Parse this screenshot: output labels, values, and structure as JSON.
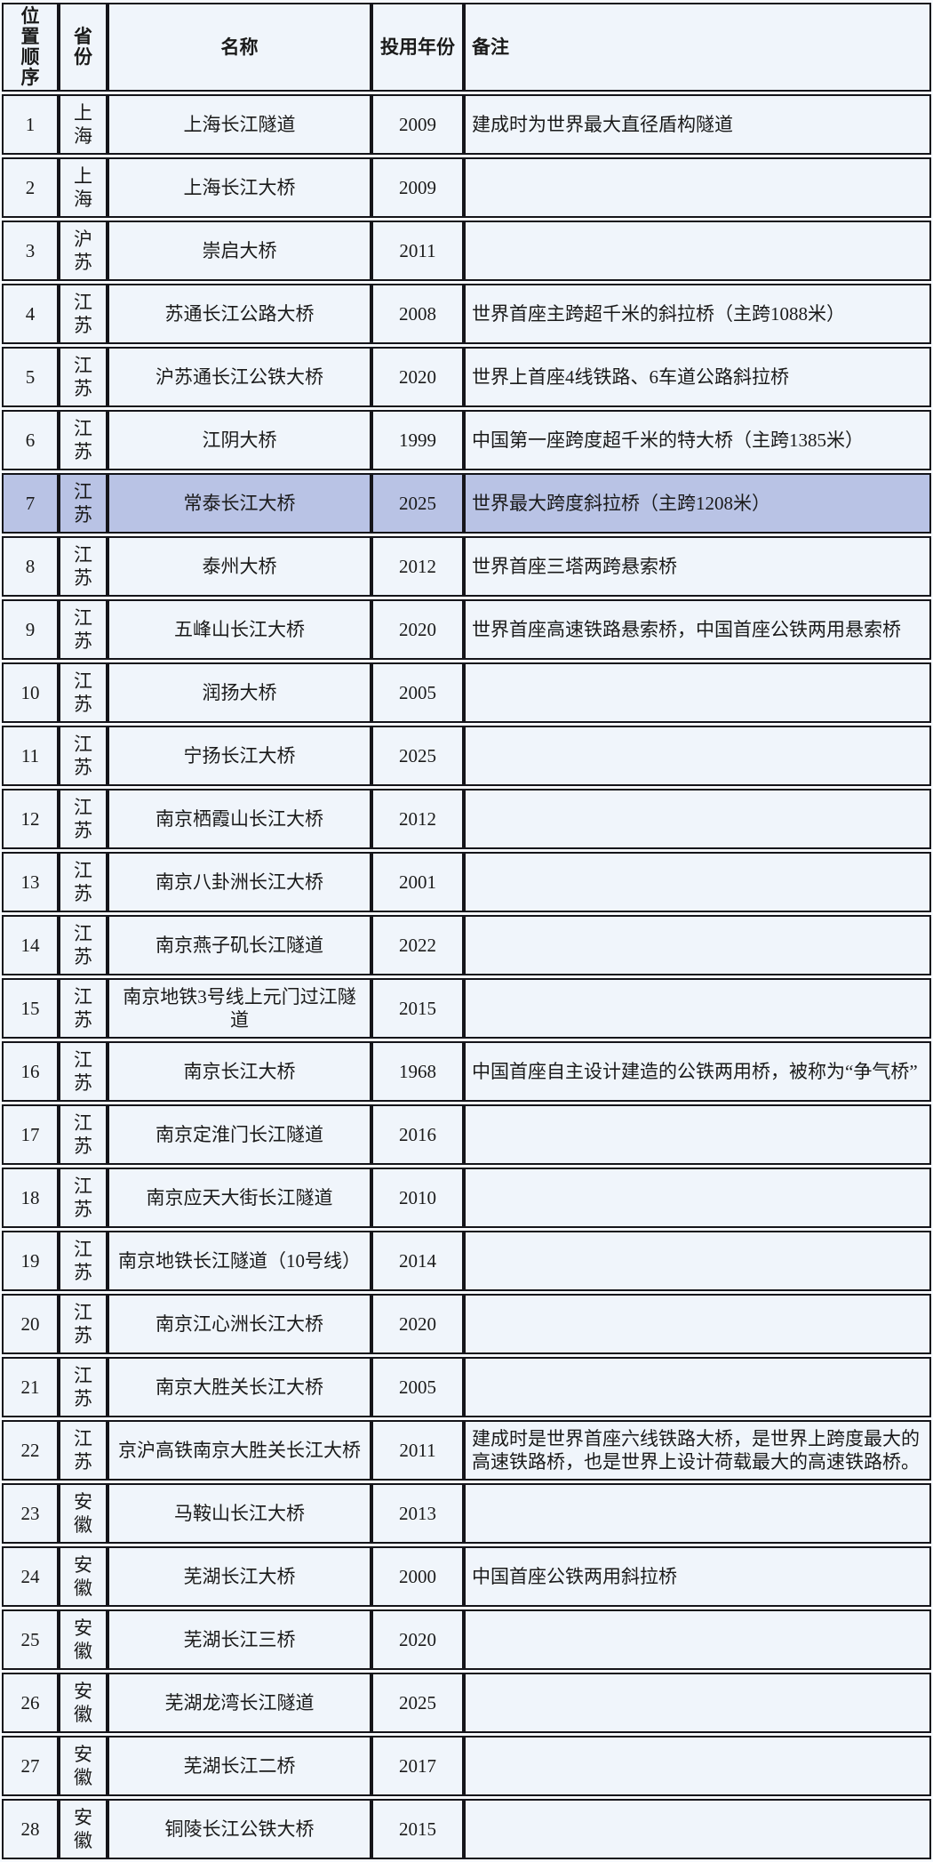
{
  "table": {
    "columns": [
      {
        "key": "order",
        "label": "位置顺序"
      },
      {
        "key": "province",
        "label": "省份"
      },
      {
        "key": "name",
        "label": "名称"
      },
      {
        "key": "year",
        "label": "投用年份"
      },
      {
        "key": "remark",
        "label": "备注"
      }
    ],
    "highlighted_order": "7",
    "colors": {
      "page_bg": "#f6f9fd",
      "cell_bg": "#f0f5fb",
      "highlight_bg": "#b9c3e5",
      "border": "#15151a",
      "text": "#1a1a1a"
    },
    "rows": [
      {
        "order": "1",
        "province": "上海",
        "name": "上海长江隧道",
        "year": "2009",
        "remark": "建成时为世界最大直径盾构隧道"
      },
      {
        "order": "2",
        "province": "上海",
        "name": "上海长江大桥",
        "year": "2009",
        "remark": ""
      },
      {
        "order": "3",
        "province": "沪苏",
        "name": "崇启大桥",
        "year": "2011",
        "remark": ""
      },
      {
        "order": "4",
        "province": "江苏",
        "name": "苏通长江公路大桥",
        "year": "2008",
        "remark": "世界首座主跨超千米的斜拉桥（主跨1088米）"
      },
      {
        "order": "5",
        "province": "江苏",
        "name": "沪苏通长江公铁大桥",
        "year": "2020",
        "remark": "世界上首座4线铁路、6车道公路斜拉桥"
      },
      {
        "order": "6",
        "province": "江苏",
        "name": "江阴大桥",
        "year": "1999",
        "remark": "中国第一座跨度超千米的特大桥（主跨1385米）"
      },
      {
        "order": "7",
        "province": "江苏",
        "name": "常泰长江大桥",
        "year": "2025",
        "remark": "世界最大跨度斜拉桥（主跨1208米）"
      },
      {
        "order": "8",
        "province": "江苏",
        "name": "泰州大桥",
        "year": "2012",
        "remark": "世界首座三塔两跨悬索桥"
      },
      {
        "order": "9",
        "province": "江苏",
        "name": "五峰山长江大桥",
        "year": "2020",
        "remark": "世界首座高速铁路悬索桥，中国首座公铁两用悬索桥"
      },
      {
        "order": "10",
        "province": "江苏",
        "name": "润扬大桥",
        "year": "2005",
        "remark": ""
      },
      {
        "order": "11",
        "province": "江苏",
        "name": "宁扬长江大桥",
        "year": "2025",
        "remark": ""
      },
      {
        "order": "12",
        "province": "江苏",
        "name": "南京栖霞山长江大桥",
        "year": "2012",
        "remark": ""
      },
      {
        "order": "13",
        "province": "江苏",
        "name": "南京八卦洲长江大桥",
        "year": "2001",
        "remark": ""
      },
      {
        "order": "14",
        "province": "江苏",
        "name": "南京燕子矶长江隧道",
        "year": "2022",
        "remark": ""
      },
      {
        "order": "15",
        "province": "江苏",
        "name": "南京地铁3号线上元门过江隧道",
        "year": "2015",
        "remark": ""
      },
      {
        "order": "16",
        "province": "江苏",
        "name": "南京长江大桥",
        "year": "1968",
        "remark": "中国首座自主设计建造的公铁两用桥，被称为“争气桥”"
      },
      {
        "order": "17",
        "province": "江苏",
        "name": "南京定淮门长江隧道",
        "year": "2016",
        "remark": ""
      },
      {
        "order": "18",
        "province": "江苏",
        "name": "南京应天大街长江隧道",
        "year": "2010",
        "remark": ""
      },
      {
        "order": "19",
        "province": "江苏",
        "name": "南京地铁长江隧道（10号线）",
        "year": "2014",
        "remark": ""
      },
      {
        "order": "20",
        "province": "江苏",
        "name": "南京江心洲长江大桥",
        "year": "2020",
        "remark": ""
      },
      {
        "order": "21",
        "province": "江苏",
        "name": "南京大胜关长江大桥",
        "year": "2005",
        "remark": ""
      },
      {
        "order": "22",
        "province": "江苏",
        "name": "京沪高铁南京大胜关长江大桥",
        "year": "2011",
        "remark": "建成时是世界首座六线铁路大桥，是世界上跨度最大的高速铁路桥，也是世界上设计荷载最大的高速铁路桥。"
      },
      {
        "order": "23",
        "province": "安徽",
        "name": "马鞍山长江大桥",
        "year": "2013",
        "remark": ""
      },
      {
        "order": "24",
        "province": "安徽",
        "name": "芜湖长江大桥",
        "year": "2000",
        "remark": "中国首座公铁两用斜拉桥"
      },
      {
        "order": "25",
        "province": "安徽",
        "name": "芜湖长江三桥",
        "year": "2020",
        "remark": ""
      },
      {
        "order": "26",
        "province": "安徽",
        "name": "芜湖龙湾长江隧道",
        "year": "2025",
        "remark": ""
      },
      {
        "order": "27",
        "province": "安徽",
        "name": "芜湖长江二桥",
        "year": "2017",
        "remark": ""
      },
      {
        "order": "28",
        "province": "安徽",
        "name": "铜陵长江公铁大桥",
        "year": "2015",
        "remark": ""
      }
    ]
  }
}
